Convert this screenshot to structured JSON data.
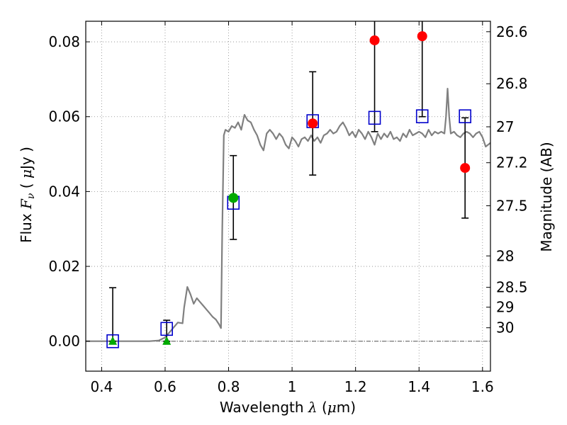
{
  "chart_data": {
    "type": "scatter",
    "xlabel": "Wavelength  λ (μm)",
    "ylabel": "Flux  F_ν  ( μJy )",
    "ylabel_right": "Magnitude (AB)",
    "xlim": [
      0.35,
      1.625
    ],
    "ylim": [
      -0.008,
      0.0855
    ],
    "grid": true,
    "x_ticks": [
      0.4,
      0.6,
      0.8,
      1.0,
      1.2,
      1.4,
      1.6
    ],
    "x_tick_labels": [
      "0.4",
      "0.6",
      "0.8",
      "1",
      "1.2",
      "1.4",
      "1.6"
    ],
    "y_ticks": [
      0.0,
      0.02,
      0.04,
      0.06,
      0.08
    ],
    "y_tick_labels": [
      "0.00",
      "0.02",
      "0.04",
      "0.06",
      "0.08"
    ],
    "right_ticks": [
      {
        "label": "26.6",
        "flux": 0.0827
      },
      {
        "label": "26.8",
        "flux": 0.0688
      },
      {
        "label": "27",
        "flux": 0.0573
      },
      {
        "label": "27.2",
        "flux": 0.0477
      },
      {
        "label": "27.5",
        "flux": 0.0362
      },
      {
        "label": "28",
        "flux": 0.0228
      },
      {
        "label": "28.5",
        "flux": 0.0144
      },
      {
        "label": "29",
        "flux": 0.0091
      },
      {
        "label": "30",
        "flux": 0.0036
      }
    ],
    "model_spectrum": {
      "color": "#808080",
      "x": [
        0.35,
        0.4,
        0.45,
        0.5,
        0.55,
        0.58,
        0.6,
        0.62,
        0.64,
        0.655,
        0.66,
        0.67,
        0.68,
        0.69,
        0.7,
        0.71,
        0.72,
        0.73,
        0.74,
        0.75,
        0.76,
        0.77,
        0.776,
        0.78,
        0.785,
        0.79,
        0.8,
        0.81,
        0.82,
        0.83,
        0.84,
        0.85,
        0.86,
        0.87,
        0.88,
        0.89,
        0.9,
        0.91,
        0.92,
        0.93,
        0.94,
        0.95,
        0.96,
        0.97,
        0.98,
        0.99,
        1.0,
        1.01,
        1.02,
        1.03,
        1.04,
        1.05,
        1.06,
        1.07,
        1.08,
        1.09,
        1.1,
        1.11,
        1.12,
        1.13,
        1.14,
        1.15,
        1.16,
        1.17,
        1.18,
        1.19,
        1.2,
        1.21,
        1.22,
        1.23,
        1.24,
        1.25,
        1.26,
        1.27,
        1.28,
        1.29,
        1.3,
        1.31,
        1.32,
        1.33,
        1.34,
        1.35,
        1.36,
        1.37,
        1.38,
        1.39,
        1.4,
        1.41,
        1.42,
        1.43,
        1.44,
        1.45,
        1.46,
        1.47,
        1.48,
        1.485,
        1.49,
        1.495,
        1.5,
        1.51,
        1.52,
        1.53,
        1.54,
        1.55,
        1.56,
        1.57,
        1.58,
        1.59,
        1.6,
        1.61,
        1.625
      ],
      "y": [
        0.0,
        0.0,
        0.0,
        0.0,
        0.0,
        0.0002,
        0.001,
        0.003,
        0.005,
        0.0048,
        0.009,
        0.0145,
        0.0125,
        0.01,
        0.0115,
        0.0105,
        0.0095,
        0.0085,
        0.0075,
        0.0065,
        0.0058,
        0.0045,
        0.0035,
        0.03,
        0.055,
        0.0565,
        0.056,
        0.0575,
        0.057,
        0.0585,
        0.0565,
        0.0605,
        0.059,
        0.0585,
        0.0565,
        0.055,
        0.0525,
        0.051,
        0.0555,
        0.0565,
        0.0555,
        0.054,
        0.0555,
        0.0545,
        0.0525,
        0.0515,
        0.0545,
        0.0535,
        0.052,
        0.054,
        0.0545,
        0.0535,
        0.055,
        0.0535,
        0.0545,
        0.053,
        0.055,
        0.0555,
        0.0565,
        0.0555,
        0.056,
        0.0575,
        0.0585,
        0.057,
        0.055,
        0.056,
        0.0545,
        0.0565,
        0.0555,
        0.054,
        0.056,
        0.0545,
        0.0525,
        0.0555,
        0.054,
        0.0555,
        0.0545,
        0.056,
        0.054,
        0.0545,
        0.0535,
        0.0555,
        0.0545,
        0.0565,
        0.055,
        0.0555,
        0.056,
        0.0555,
        0.0545,
        0.0565,
        0.055,
        0.056,
        0.0555,
        0.056,
        0.0555,
        0.06,
        0.0675,
        0.06,
        0.0555,
        0.056,
        0.055,
        0.0545,
        0.0555,
        0.056,
        0.0555,
        0.0545,
        0.0555,
        0.056,
        0.0545,
        0.052,
        0.053
      ]
    },
    "series": [
      {
        "name": "",
        "marker": "open-square",
        "color": "#0000cc",
        "x": [
          0.435,
          0.605,
          0.815,
          1.065,
          1.26,
          1.41,
          1.545
        ],
        "y": [
          0.0,
          0.0033,
          0.037,
          0.0588,
          0.0597,
          0.0601,
          0.0601
        ]
      },
      {
        "name": "",
        "marker": "filled-circle",
        "color": "#00aa00",
        "x": [
          0.815
        ],
        "y": [
          0.0383
        ],
        "yerr_low": [
          0.0272
        ],
        "yerr_high": [
          0.0496
        ]
      },
      {
        "name": "",
        "marker": "filled-circle",
        "color": "#ff0000",
        "x": [
          1.065,
          1.26,
          1.41,
          1.545
        ],
        "y": [
          0.0582,
          0.0804,
          0.0815,
          0.0463
        ],
        "yerr_low": [
          0.0444,
          0.056,
          0.06,
          0.0329
        ],
        "yerr_high": [
          0.072,
          0.0855,
          0.0855,
          0.0597
        ]
      },
      {
        "name": "",
        "marker": "filled-triangle",
        "color": "#00aa00",
        "x": [
          0.435,
          0.605
        ],
        "y": [
          0.0,
          0.0
        ],
        "yerr_low": [
          0.0,
          0.0
        ],
        "yerr_high": [
          0.0143,
          0.0056
        ]
      }
    ]
  }
}
